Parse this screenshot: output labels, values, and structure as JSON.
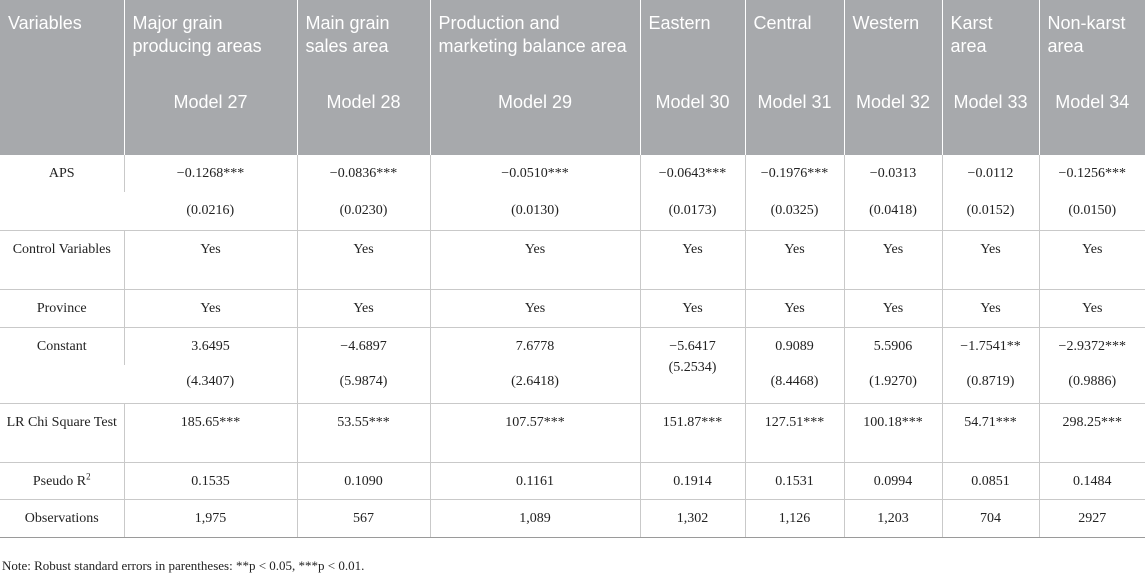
{
  "header": {
    "variables_label": "Variables",
    "columns": [
      "Major grain producing areas",
      "Main grain sales area",
      "Production and marketing balance area",
      "Eastern",
      "Central",
      "Western",
      "Karst area",
      "Non-karst area"
    ],
    "models": [
      "Model 27",
      "Model 28",
      "Model 29",
      "Model 30",
      "Model 31",
      "Model 32",
      "Model 33",
      "Model 34"
    ]
  },
  "rows": {
    "aps": {
      "label": "APS",
      "coef": [
        "−0.1268***",
        "−0.0836***",
        "−0.0510***",
        "−0.0643***",
        "−0.1976***",
        "−0.0313",
        "−0.0112",
        "−0.1256***"
      ],
      "se": [
        "(0.0216)",
        "(0.0230)",
        "(0.0130)",
        "(0.0173)",
        "(0.0325)",
        "(0.0418)",
        "(0.0152)",
        "(0.0150)"
      ]
    },
    "control": {
      "label": "Control Variables",
      "values": [
        "Yes",
        "Yes",
        "Yes",
        "Yes",
        "Yes",
        "Yes",
        "Yes",
        "Yes"
      ]
    },
    "province": {
      "label": "Province",
      "values": [
        "Yes",
        "Yes",
        "Yes",
        "Yes",
        "Yes",
        "Yes",
        "Yes",
        "Yes"
      ]
    },
    "constant": {
      "label": "Constant",
      "coef": [
        "3.6495",
        "−4.6897",
        "7.6778",
        "−5.6417",
        "0.9089",
        "5.5906",
        "−1.7541**",
        "−2.9372***"
      ],
      "se": [
        "(4.3407)",
        "(5.9874)",
        "(2.6418)",
        "(5.2534)",
        "(8.4468)",
        "(1.9270)",
        "(0.8719)",
        "(0.9886)"
      ]
    },
    "lr": {
      "label": "LR Chi Square Test",
      "values": [
        "185.65***",
        "53.55***",
        "107.57***",
        "151.87***",
        "127.51***",
        "100.18***",
        "54.71***",
        "298.25***"
      ]
    },
    "pseudo": {
      "label": "Pseudo R",
      "label_sup": "2",
      "values": [
        "0.1535",
        "0.1090",
        "0.1161",
        "0.1914",
        "0.1531",
        "0.0994",
        "0.0851",
        "0.1484"
      ]
    },
    "obs": {
      "label": "Observations",
      "values": [
        "1,975",
        "567",
        "1,089",
        "1,302",
        "1,126",
        "1,203",
        "704",
        "2927"
      ]
    }
  },
  "note": "Note: Robust standard errors in parentheses: **p < 0.05, ***p < 0.01."
}
